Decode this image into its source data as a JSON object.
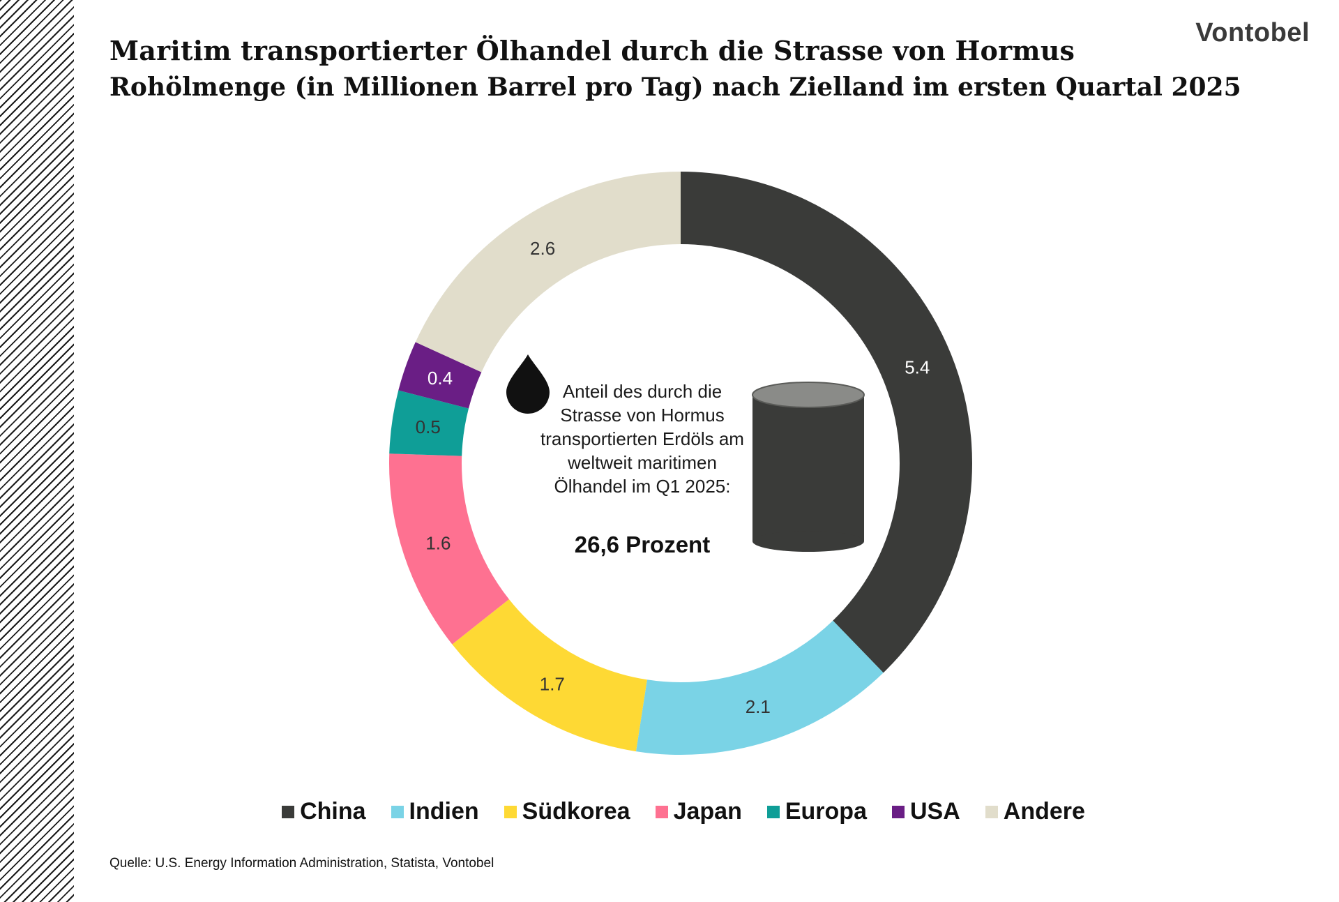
{
  "header": {
    "title": "Maritim transportierter Ölhandel durch die Strasse von Hormus",
    "subtitle": "Rohölmenge (in Millionen Barrel pro Tag) nach Zielland im ersten Quartal 2025",
    "brand": "Vontobel"
  },
  "center": {
    "text": "Anteil des durch die Strasse von Hormus transportierten Erdöls am weltweit maritimen Ölhandel im Q1 2025:",
    "value": "26,6 Prozent"
  },
  "icons": {
    "drop": "oil-drop-icon",
    "barrel": "oil-barrel-icon"
  },
  "chart_data": {
    "type": "pie",
    "variant": "donut",
    "categories": [
      "China",
      "Indien",
      "Südkorea",
      "Japan",
      "Europa",
      "USA",
      "Andere"
    ],
    "values": [
      5.4,
      2.1,
      1.7,
      1.6,
      0.5,
      0.4,
      2.6
    ],
    "value_labels": [
      "5.4",
      "2.1",
      "1.7",
      "1.6",
      "0.5",
      "0.4",
      "2.6"
    ],
    "colors": [
      "#3a3b39",
      "#7ad3e6",
      "#fed934",
      "#fe7191",
      "#0f9e97",
      "#6a1e85",
      "#e1ddcb"
    ],
    "label_colors": [
      "#ffffff",
      "#333333",
      "#333333",
      "#333333",
      "#333333",
      "#ffffff",
      "#333333"
    ],
    "start": "12 o'clock",
    "direction": "clockwise",
    "legend_position": "bottom"
  },
  "footer": {
    "source": "Quelle: U.S. Energy Information Administration, Statista, Vontobel"
  }
}
